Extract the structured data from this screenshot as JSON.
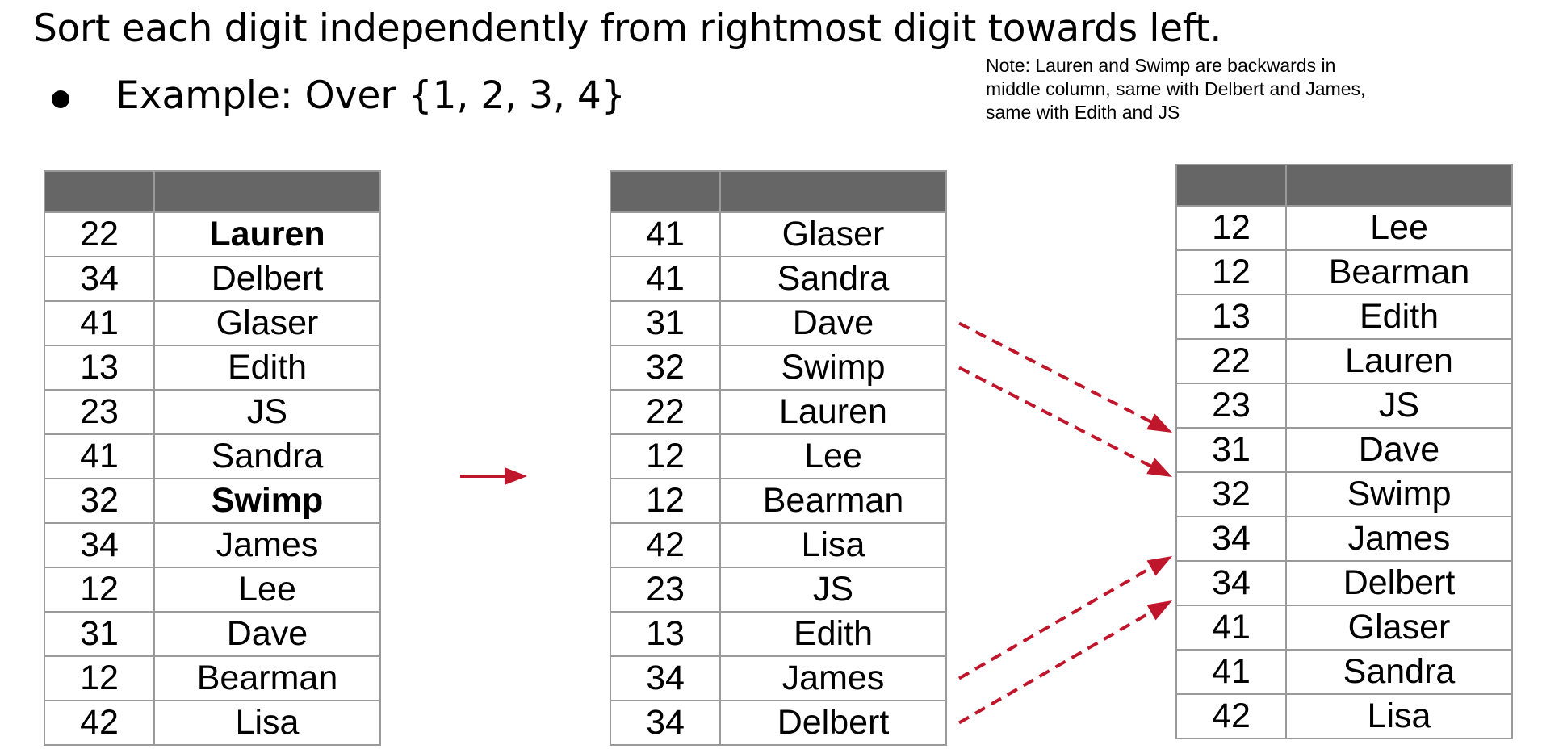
{
  "title": "Sort each digit independently from rightmost digit towards left.",
  "bullet_text": "Example: Over {1, 2, 3, 4}",
  "note_lines": [
    "Note: Lauren and Swimp are backwards in",
    "middle column, same with Delbert and James,",
    "same with Edith and JS"
  ],
  "colors": {
    "header_fill": "#666666",
    "grid": "#9a9a9a",
    "arrow": "#c0162b"
  },
  "tables": [
    {
      "rows": [
        {
          "key": "22",
          "name": "Lauren",
          "bold": true
        },
        {
          "key": "34",
          "name": "Delbert"
        },
        {
          "key": "41",
          "name": "Glaser"
        },
        {
          "key": "13",
          "name": "Edith"
        },
        {
          "key": "23",
          "name": "JS"
        },
        {
          "key": "41",
          "name": "Sandra"
        },
        {
          "key": "32",
          "name": "Swimp",
          "bold": true
        },
        {
          "key": "34",
          "name": "James"
        },
        {
          "key": "12",
          "name": "Lee"
        },
        {
          "key": "31",
          "name": "Dave"
        },
        {
          "key": "12",
          "name": "Bearman"
        },
        {
          "key": "42",
          "name": "Lisa"
        }
      ]
    },
    {
      "rows": [
        {
          "key": "41",
          "name": "Glaser"
        },
        {
          "key": "41",
          "name": "Sandra"
        },
        {
          "key": "31",
          "name": "Dave"
        },
        {
          "key": "32",
          "name": "Swimp"
        },
        {
          "key": "22",
          "name": "Lauren"
        },
        {
          "key": "12",
          "name": "Lee"
        },
        {
          "key": "12",
          "name": "Bearman"
        },
        {
          "key": "42",
          "name": "Lisa"
        },
        {
          "key": "23",
          "name": "JS"
        },
        {
          "key": "13",
          "name": "Edith"
        },
        {
          "key": "34",
          "name": "James"
        },
        {
          "key": "34",
          "name": "Delbert"
        }
      ]
    },
    {
      "rows": [
        {
          "key": "12",
          "name": "Lee"
        },
        {
          "key": "12",
          "name": "Bearman"
        },
        {
          "key": "13",
          "name": "Edith"
        },
        {
          "key": "22",
          "name": "Lauren"
        },
        {
          "key": "23",
          "name": "JS"
        },
        {
          "key": "31",
          "name": "Dave"
        },
        {
          "key": "32",
          "name": "Swimp"
        },
        {
          "key": "34",
          "name": "James"
        },
        {
          "key": "34",
          "name": "Delbert"
        },
        {
          "key": "41",
          "name": "Glaser"
        },
        {
          "key": "41",
          "name": "Sandra"
        },
        {
          "key": "42",
          "name": "Lisa"
        }
      ]
    }
  ],
  "connectors": [
    {
      "from_row": 2,
      "to_row": 5
    },
    {
      "from_row": 3,
      "to_row": 6
    },
    {
      "from_row": 10,
      "to_row": 7
    },
    {
      "from_row": 11,
      "to_row": 8
    }
  ]
}
